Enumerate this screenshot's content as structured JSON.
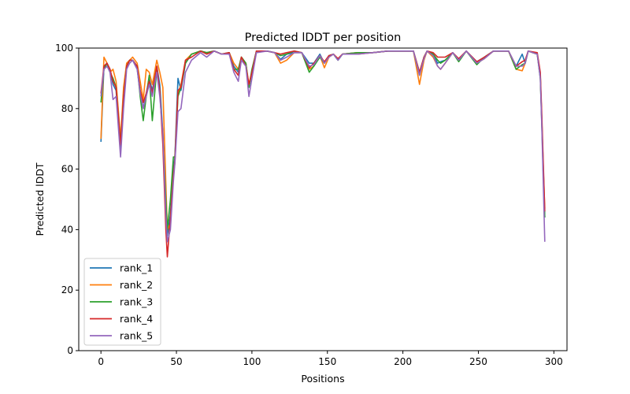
{
  "chart_data": {
    "type": "line",
    "title": "Predicted lDDT per position",
    "xlabel": "Positions",
    "ylabel": "Predicted lDDT",
    "xlim": [
      -14.7,
      308.7
    ],
    "ylim": [
      0,
      100
    ],
    "xticks": [
      0,
      50,
      100,
      150,
      200,
      250,
      300
    ],
    "yticks": [
      0,
      20,
      40,
      60,
      80,
      100
    ],
    "grid": false,
    "legend_position": "lower-left",
    "x": [
      0,
      2,
      4,
      6,
      8,
      10,
      13,
      15,
      17,
      19,
      21,
      24,
      26,
      28,
      30,
      32,
      34,
      37,
      39,
      41,
      43,
      44,
      46,
      48,
      49,
      51,
      53,
      56,
      60,
      66,
      70,
      75,
      80,
      85,
      88,
      91,
      93,
      96,
      98,
      100,
      103,
      110,
      115,
      119,
      123,
      128,
      133,
      138,
      141,
      145,
      148,
      151,
      154,
      157,
      160,
      170,
      180,
      190,
      200,
      207,
      211,
      214,
      216,
      220,
      223,
      225,
      228,
      233,
      237,
      242,
      249,
      254,
      260,
      270,
      275,
      279,
      281,
      283,
      289,
      291,
      292,
      293,
      294
    ],
    "series": [
      {
        "name": "rank_1",
        "color": "#1f77b4",
        "values": [
          69,
          94,
          95,
          93,
          88,
          86,
          67,
          85,
          94,
          96,
          96,
          93,
          86,
          80,
          85,
          90,
          86,
          94,
          88,
          72,
          48,
          38,
          45,
          60,
          64,
          90,
          86,
          95,
          98,
          99,
          98.5,
          99,
          98,
          98.5,
          94,
          92,
          97,
          95,
          87,
          92,
          99,
          99,
          98.5,
          96.3,
          98,
          98.5,
          98.5,
          95,
          95,
          98,
          95,
          97.5,
          98,
          96,
          98,
          98.5,
          98.5,
          99,
          99,
          99,
          92,
          97,
          99,
          98,
          95,
          95.5,
          96,
          98.5,
          96,
          99,
          95.5,
          97,
          99,
          99,
          94,
          98,
          95,
          99,
          98,
          91,
          76,
          60,
          44
        ]
      },
      {
        "name": "rank_2",
        "color": "#ff7f0e",
        "values": [
          70,
          97,
          95,
          92,
          93,
          89,
          70,
          87,
          95,
          96,
          97,
          95,
          89,
          83,
          93,
          92,
          88,
          96,
          92,
          87,
          55,
          40,
          42,
          58,
          62,
          85,
          88,
          96,
          98,
          99,
          98.5,
          99,
          98,
          98.5,
          95,
          93,
          97,
          95,
          88,
          92,
          99,
          99,
          98.5,
          95,
          96,
          98.5,
          98.5,
          93,
          94,
          97.5,
          93.5,
          97,
          98,
          96.5,
          98,
          98.5,
          98.5,
          99,
          99,
          99,
          88,
          96,
          99,
          97,
          94,
          93,
          95,
          98.5,
          96,
          99,
          95,
          96.5,
          99,
          99,
          93,
          92.5,
          95,
          99,
          98,
          91,
          76,
          60,
          47
        ]
      },
      {
        "name": "rank_3",
        "color": "#2ca02c",
        "values": [
          82,
          93,
          95,
          92,
          90,
          87,
          68,
          84,
          94,
          96,
          96,
          94,
          84,
          76,
          84,
          91,
          76,
          93,
          86,
          70,
          50,
          40,
          50,
          64,
          64,
          84,
          87,
          95,
          98,
          99,
          98.5,
          99,
          98,
          98.5,
          93,
          93,
          97,
          95,
          87,
          93,
          99,
          99,
          98.5,
          97.5,
          98,
          99,
          98.5,
          92,
          94,
          97,
          95,
          97.5,
          98,
          96,
          98,
          98.5,
          98.5,
          99,
          99,
          99,
          91,
          97,
          99,
          98,
          96,
          95,
          96,
          98.5,
          95.5,
          99,
          94.5,
          97,
          99,
          99,
          93,
          94.5,
          95,
          99,
          98,
          90,
          75,
          58,
          44
        ]
      },
      {
        "name": "rank_4",
        "color": "#d62728",
        "values": [
          85,
          94,
          95,
          93,
          89,
          87,
          68,
          84,
          94,
          96,
          96,
          94,
          86,
          82,
          85,
          89,
          85,
          94,
          86,
          68,
          40,
          31,
          44,
          58,
          63,
          86,
          87,
          96,
          97,
          99,
          98,
          99,
          98,
          98.5,
          93,
          91,
          97,
          94,
          88,
          92,
          99,
          99,
          98.5,
          98,
          98.5,
          99,
          98.5,
          93.5,
          95,
          97.5,
          95.5,
          97.5,
          98,
          96.5,
          98,
          98,
          98.5,
          99,
          99,
          99,
          92,
          97,
          99,
          98.5,
          97,
          97,
          97,
          98.5,
          96.5,
          99,
          95.5,
          97,
          99,
          99,
          94,
          95.5,
          96,
          99,
          98.5,
          92,
          78,
          62,
          46
        ]
      },
      {
        "name": "rank_5",
        "color": "#9467bd",
        "values": [
          84,
          93,
          94,
          92,
          83,
          84,
          64,
          80,
          93,
          95,
          96,
          93,
          85,
          80,
          84,
          88,
          84,
          92,
          84,
          72,
          45,
          36,
          40,
          56,
          62,
          79,
          80,
          92,
          96,
          98.5,
          97,
          99,
          98,
          98,
          92,
          89,
          96,
          94,
          84,
          90,
          98.5,
          99,
          98.5,
          96,
          97,
          98.5,
          98.5,
          94,
          94.5,
          97.5,
          95,
          97,
          98,
          96,
          98,
          98,
          98.5,
          99,
          99,
          99,
          91,
          96.5,
          99,
          97.5,
          94,
          93,
          95,
          98.5,
          96,
          99,
          95,
          96.5,
          99,
          99,
          94,
          94,
          95,
          99,
          98,
          90,
          74,
          55,
          36
        ]
      }
    ]
  }
}
